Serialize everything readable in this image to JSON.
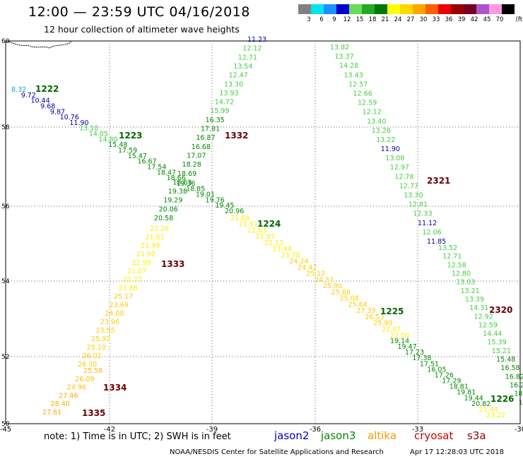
{
  "header": {
    "title": "12:00 — 23:59 UTC 04/16/2018",
    "subtitle": "12 hour collection of altimeter wave heights"
  },
  "legend": {
    "unit": "(ft)",
    "swatches": [
      {
        "label": "3",
        "color": "#808080"
      },
      {
        "label": "6",
        "color": "#00e5ee"
      },
      {
        "label": "9",
        "color": "#1e90ff"
      },
      {
        "label": "12",
        "color": "#0000cd"
      },
      {
        "label": "15",
        "color": "#66dd55"
      },
      {
        "label": "18",
        "color": "#22aa22"
      },
      {
        "label": "21",
        "color": "#007700"
      },
      {
        "label": "24",
        "color": "#ffff00"
      },
      {
        "label": "27",
        "color": "#ffd700"
      },
      {
        "label": "30",
        "color": "#ffa500"
      },
      {
        "label": "33",
        "color": "#ff6000"
      },
      {
        "label": "36",
        "color": "#ee0000"
      },
      {
        "label": "39",
        "color": "#990000"
      },
      {
        "label": "42",
        "color": "#770022"
      },
      {
        "label": "45",
        "color": "#aa55cc"
      },
      {
        "label": "70",
        "color": "#ff99dd"
      },
      {
        "label": "",
        "color": "#000000"
      }
    ]
  },
  "axes": {
    "x_ticks": [
      "-45",
      "-42",
      "-39",
      "-36",
      "-33",
      "-30"
    ],
    "y_ticks": [
      "60",
      "58",
      "56",
      "54",
      "52",
      "50"
    ]
  },
  "tracks": [
    {
      "id": "1222",
      "color": "#006600",
      "points": [
        {
          "v": "8.32",
          "c": "#00aadd"
        },
        {
          "v": "9.72",
          "c": "#0000aa"
        },
        {
          "v": "10.44",
          "c": "#0000aa"
        },
        {
          "v": "9.68",
          "c": "#0000aa"
        },
        {
          "v": "9.87",
          "c": "#0000aa"
        },
        {
          "v": "10.76",
          "c": "#0000aa"
        },
        {
          "v": "11.90",
          "c": "#0000aa"
        },
        {
          "v": "13.10",
          "c": "#44cc44"
        },
        {
          "v": "14.05",
          "c": "#44cc44"
        },
        {
          "v": "14.80",
          "c": "#44cc44"
        },
        {
          "v": "15.48",
          "c": "#008800"
        },
        {
          "v": "17.59",
          "c": "#008800"
        },
        {
          "v": "15.47",
          "c": "#008800"
        },
        {
          "v": "16.67",
          "c": "#008800"
        },
        {
          "v": "17.54",
          "c": "#008800"
        },
        {
          "v": "18.47",
          "c": "#008800"
        },
        {
          "v": "18.66",
          "c": "#008800"
        },
        {
          "v": "19.36",
          "c": "#008800"
        },
        {
          "v": "18.85",
          "c": "#008800"
        },
        {
          "v": "19.01",
          "c": "#008800"
        },
        {
          "v": "19.76",
          "c": "#008800"
        },
        {
          "v": "19.45",
          "c": "#008800"
        },
        {
          "v": "20.96",
          "c": "#008800"
        }
      ]
    },
    {
      "id": "1223",
      "color": "#006600",
      "points": []
    },
    {
      "id": "1332",
      "color": "#660000",
      "points": [
        {
          "v": "11.23",
          "c": "#0000aa"
        },
        {
          "v": "12.12",
          "c": "#44cc44"
        },
        {
          "v": "12.71",
          "c": "#44cc44"
        },
        {
          "v": "13.54",
          "c": "#44cc44"
        },
        {
          "v": "12.47",
          "c": "#44cc44"
        },
        {
          "v": "13.30",
          "c": "#44cc44"
        },
        {
          "v": "13.93",
          "c": "#44cc44"
        },
        {
          "v": "14.72",
          "c": "#44cc44"
        },
        {
          "v": "15.99",
          "c": "#44cc44"
        },
        {
          "v": "16.35",
          "c": "#008800"
        },
        {
          "v": "17.81",
          "c": "#008800"
        },
        {
          "v": "16.87",
          "c": "#008800"
        },
        {
          "v": "16.68",
          "c": "#008800"
        },
        {
          "v": "17.07",
          "c": "#008800"
        },
        {
          "v": "18.28",
          "c": "#008800"
        },
        {
          "v": "18.69",
          "c": "#008800"
        },
        {
          "v": "18.63",
          "c": "#008800"
        },
        {
          "v": "19.38",
          "c": "#008800"
        },
        {
          "v": "19.29",
          "c": "#008800"
        },
        {
          "v": "20.06",
          "c": "#008800"
        },
        {
          "v": "20.58",
          "c": "#008800"
        }
      ]
    },
    {
      "id": "1333",
      "color": "#660000",
      "points": [
        {
          "v": "22.26",
          "c": "#ffee00"
        },
        {
          "v": "21.61",
          "c": "#ffee00"
        },
        {
          "v": "21.99",
          "c": "#ffee00"
        },
        {
          "v": "21.92",
          "c": "#ffee00"
        },
        {
          "v": "22.99",
          "c": "#ffee00"
        },
        {
          "v": "21.07",
          "c": "#ffee00"
        },
        {
          "v": "22.77",
          "c": "#ffee00"
        },
        {
          "v": "23.88",
          "c": "#ffee00"
        },
        {
          "v": "25.17",
          "c": "#ffcc00"
        },
        {
          "v": "23.69",
          "c": "#ffcc00"
        },
        {
          "v": "24.08",
          "c": "#ffcc00"
        },
        {
          "v": "23.96",
          "c": "#ffcc00"
        },
        {
          "v": "23.55",
          "c": "#ffcc00"
        },
        {
          "v": "25.92",
          "c": "#ffcc00"
        },
        {
          "v": "25.10",
          "c": "#ffcc00"
        },
        {
          "v": "26.02",
          "c": "#ffcc00"
        },
        {
          "v": "26.30",
          "c": "#ffcc00"
        }
      ]
    },
    {
      "id": "1334",
      "color": "#660000",
      "points": [
        {
          "v": "25.58",
          "c": "#ffbb00"
        },
        {
          "v": "26.09",
          "c": "#ffbb00"
        },
        {
          "v": "24.96",
          "c": "#ffbb00"
        },
        {
          "v": "27.46",
          "c": "#ffaa00"
        },
        {
          "v": "28.40",
          "c": "#ffaa00"
        },
        {
          "v": "27.61",
          "c": "#ffaa00"
        }
      ]
    },
    {
      "id": "1335",
      "color": "#660000",
      "points": []
    },
    {
      "id": "1224",
      "color": "#006600",
      "points": [
        {
          "v": "21.88",
          "c": "#ffee00"
        },
        {
          "v": "21.51",
          "c": "#ffee00"
        },
        {
          "v": "22.63",
          "c": "#ffee00"
        },
        {
          "v": "21.97",
          "c": "#ffee00"
        },
        {
          "v": "22.13",
          "c": "#ffee00"
        },
        {
          "v": "23.44",
          "c": "#ffee00"
        },
        {
          "v": "23.78",
          "c": "#ffee00"
        },
        {
          "v": "24.24",
          "c": "#ffcc00"
        },
        {
          "v": "24.42",
          "c": "#ffcc00"
        },
        {
          "v": "25.12",
          "c": "#ffcc00"
        },
        {
          "v": "24.37",
          "c": "#ffcc00"
        },
        {
          "v": "25.90",
          "c": "#ffcc00"
        },
        {
          "v": "25.68",
          "c": "#ffcc00"
        },
        {
          "v": "25.08",
          "c": "#ffcc00"
        },
        {
          "v": "25.84",
          "c": "#ffcc00"
        },
        {
          "v": "27.39",
          "c": "#ffcc00"
        },
        {
          "v": "26.53",
          "c": "#ffcc00"
        },
        {
          "v": "25.90",
          "c": "#ffcc00"
        },
        {
          "v": "22.07",
          "c": "#ffee00"
        },
        {
          "v": "22.00",
          "c": "#ffee00"
        }
      ]
    },
    {
      "id": "1225",
      "color": "#006600",
      "points": [
        {
          "v": "19.14",
          "c": "#008800"
        },
        {
          "v": "19.47",
          "c": "#008800"
        },
        {
          "v": "17.23",
          "c": "#008800"
        },
        {
          "v": "17.38",
          "c": "#008800"
        },
        {
          "v": "17.51",
          "c": "#008800"
        },
        {
          "v": "16.05",
          "c": "#008800"
        },
        {
          "v": "17.26",
          "c": "#008800"
        },
        {
          "v": "17.29",
          "c": "#008800"
        },
        {
          "v": "18.81",
          "c": "#008800"
        },
        {
          "v": "19.81",
          "c": "#008800"
        },
        {
          "v": "19.44",
          "c": "#008800"
        },
        {
          "v": "20.82",
          "c": "#008800"
        },
        {
          "v": "21.44",
          "c": "#ffee00"
        },
        {
          "v": "23.22",
          "c": "#ffee00"
        }
      ]
    },
    {
      "id": "1226",
      "color": "#006600",
      "points": []
    },
    {
      "id": "2321",
      "color": "#660000",
      "points": [
        {
          "v": "13.82",
          "c": "#44cc44"
        },
        {
          "v": "13.37",
          "c": "#44cc44"
        },
        {
          "v": "14.28",
          "c": "#44cc44"
        },
        {
          "v": "13.43",
          "c": "#44cc44"
        },
        {
          "v": "12.57",
          "c": "#44cc44"
        },
        {
          "v": "12.66",
          "c": "#44cc44"
        },
        {
          "v": "12.59",
          "c": "#44cc44"
        },
        {
          "v": "12.12",
          "c": "#44cc44"
        },
        {
          "v": "13.40",
          "c": "#44cc44"
        },
        {
          "v": "13.26",
          "c": "#44cc44"
        },
        {
          "v": "13.22",
          "c": "#44cc44"
        },
        {
          "v": "11.90",
          "c": "#0000aa"
        },
        {
          "v": "13.08",
          "c": "#44cc44"
        },
        {
          "v": "12.97",
          "c": "#44cc44"
        },
        {
          "v": "12.78",
          "c": "#44cc44"
        },
        {
          "v": "12.77",
          "c": "#44cc44"
        },
        {
          "v": "13.30",
          "c": "#44cc44"
        },
        {
          "v": "12.81",
          "c": "#44cc44"
        },
        {
          "v": "12.33",
          "c": "#44cc44"
        },
        {
          "v": "11.12",
          "c": "#0000aa"
        },
        {
          "v": "12.06",
          "c": "#44cc44"
        },
        {
          "v": "11.85",
          "c": "#0000aa"
        }
      ]
    },
    {
      "id": "2320",
      "color": "#660000",
      "points": [
        {
          "v": "13.52",
          "c": "#44cc44"
        },
        {
          "v": "12.71",
          "c": "#44cc44"
        },
        {
          "v": "12.58",
          "c": "#44cc44"
        },
        {
          "v": "12.80",
          "c": "#44cc44"
        },
        {
          "v": "13.03",
          "c": "#44cc44"
        },
        {
          "v": "13.21",
          "c": "#44cc44"
        },
        {
          "v": "13.39",
          "c": "#44cc44"
        },
        {
          "v": "14.31",
          "c": "#44cc44"
        },
        {
          "v": "12.92",
          "c": "#44cc44"
        },
        {
          "v": "12.59",
          "c": "#44cc44"
        },
        {
          "v": "14.44",
          "c": "#44cc44"
        },
        {
          "v": "15.39",
          "c": "#44cc44"
        },
        {
          "v": "15.21",
          "c": "#44cc44"
        },
        {
          "v": "15.48",
          "c": "#008800"
        },
        {
          "v": "16.58",
          "c": "#008800"
        },
        {
          "v": "16.82",
          "c": "#008800"
        },
        {
          "v": "16.26",
          "c": "#008800"
        },
        {
          "v": "18.96",
          "c": "#008800"
        },
        {
          "v": "16.48",
          "c": "#008800"
        },
        {
          "v": "23.??",
          "c": "#ffee00"
        }
      ]
    }
  ],
  "footer": {
    "note": "note:  1) Time is in UTC;  2) SWH is in feet",
    "satellites": [
      {
        "name": "jason2",
        "color": "#0000cc"
      },
      {
        "name": "jason3",
        "color": "#008800"
      },
      {
        "name": "altika",
        "color": "#ff9900"
      },
      {
        "name": "cryosat",
        "color": "#cc0000"
      },
      {
        "name": "s3a",
        "color": "#990000"
      }
    ],
    "credit": "NOAA/NESDIS Center for Satellite Applications and Research",
    "timestamp": "Apr 17 12:28:03 UTC 2018"
  }
}
